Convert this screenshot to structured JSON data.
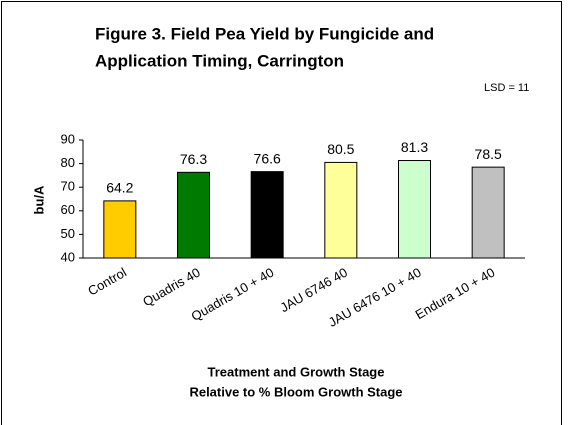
{
  "chart_data": {
    "type": "bar",
    "title": [
      "Figure 3. Field Pea Yield by Fungicide and",
      "Application Timing, Carrington"
    ],
    "annotation": "LSD = 11",
    "y_label": "bu/A",
    "x_label": [
      "Treatment and Growth Stage",
      "Relative to % Bloom Growth Stage"
    ],
    "categories": [
      "Control",
      "Quadris 40",
      "Quadris 10 + 40",
      "JAU 6746 40",
      "JAU 6476 10 + 40",
      "Endura 10 + 40"
    ],
    "values": [
      64.2,
      76.3,
      76.6,
      80.5,
      81.3,
      78.5
    ],
    "colors": [
      "#ffcc00",
      "#007a00",
      "#000000",
      "#ffff99",
      "#ccffcc",
      "#c0c0c0"
    ],
    "ylim": [
      40,
      90
    ],
    "yticks": [
      40,
      50,
      60,
      70,
      80,
      90
    ],
    "grid": false
  }
}
